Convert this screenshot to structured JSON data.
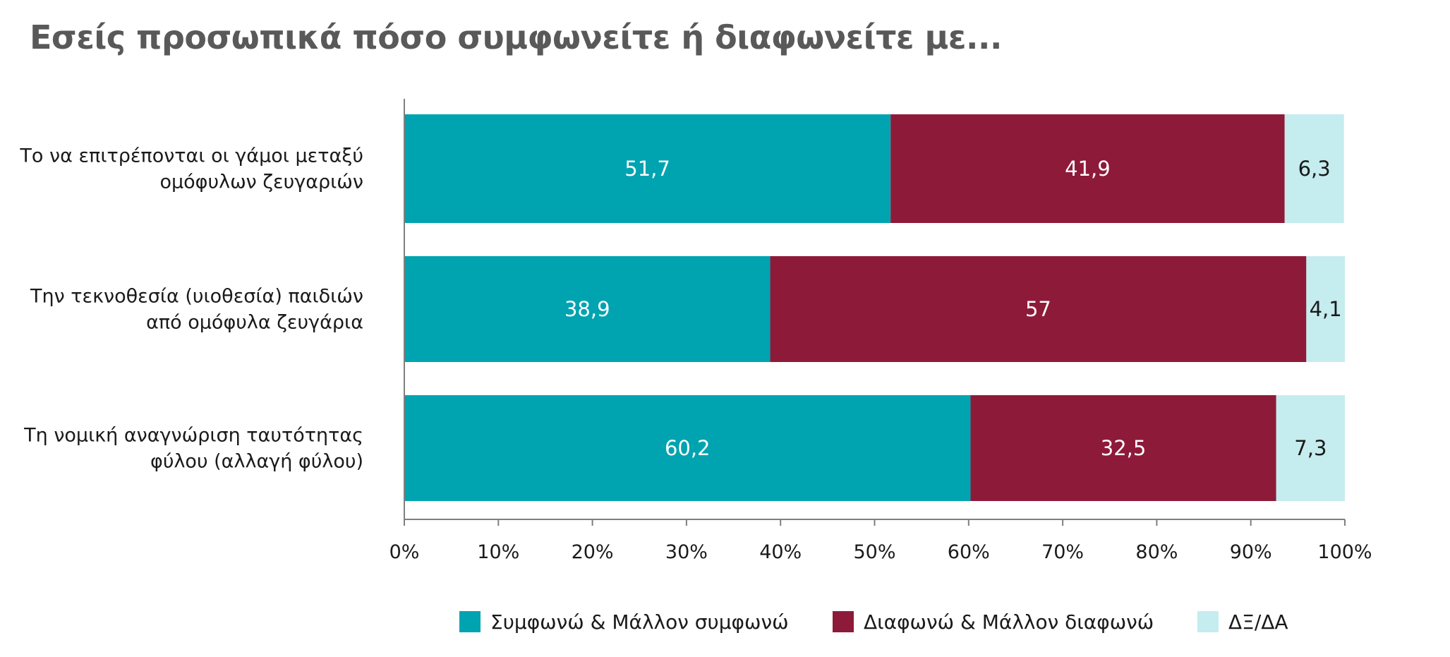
{
  "chart_data": {
    "type": "bar",
    "orientation": "horizontal",
    "stacked": true,
    "title": "Εσείς προσωπικά πόσο συμφωνείτε ή διαφωνείτε με...",
    "categories": [
      [
        "Το να επιτρέπονται οι γάμοι μεταξύ",
        "ομόφυλων ζευγαριών"
      ],
      [
        "Την τεκνοθεσία (υιοθεσία) παιδιών",
        "από ομόφυλα ζευγάρια"
      ],
      [
        "Τη νομική αναγνώριση ταυτότητας",
        "φύλου (αλλαγή φύλου)"
      ]
    ],
    "series": [
      {
        "name": "Συμφωνώ & Μάλλον συμφωνώ",
        "values": [
          51.7,
          38.9,
          60.2
        ],
        "labels": [
          "51,7",
          "38,9",
          "60,2"
        ],
        "color": "#00A3B0",
        "label_color": "#ffffff"
      },
      {
        "name": "Διαφωνώ & Μάλλον διαφωνώ",
        "values": [
          41.9,
          57,
          32.5
        ],
        "labels": [
          "41,9",
          "57",
          "32,5"
        ],
        "color": "#8E1A3A",
        "label_color": "#ffffff"
      },
      {
        "name": "ΔΞ/ΔΑ",
        "values": [
          6.3,
          4.1,
          7.3
        ],
        "labels": [
          "6,3",
          "4,1",
          "7,3"
        ],
        "color": "#C5ECEE",
        "label_color": "#1a1a1a"
      }
    ],
    "xlim": [
      0,
      100
    ],
    "xticks": [
      "0%",
      "10%",
      "20%",
      "30%",
      "40%",
      "50%",
      "60%",
      "70%",
      "80%",
      "90%",
      "100%"
    ],
    "grid": false,
    "legend": "bottom"
  }
}
